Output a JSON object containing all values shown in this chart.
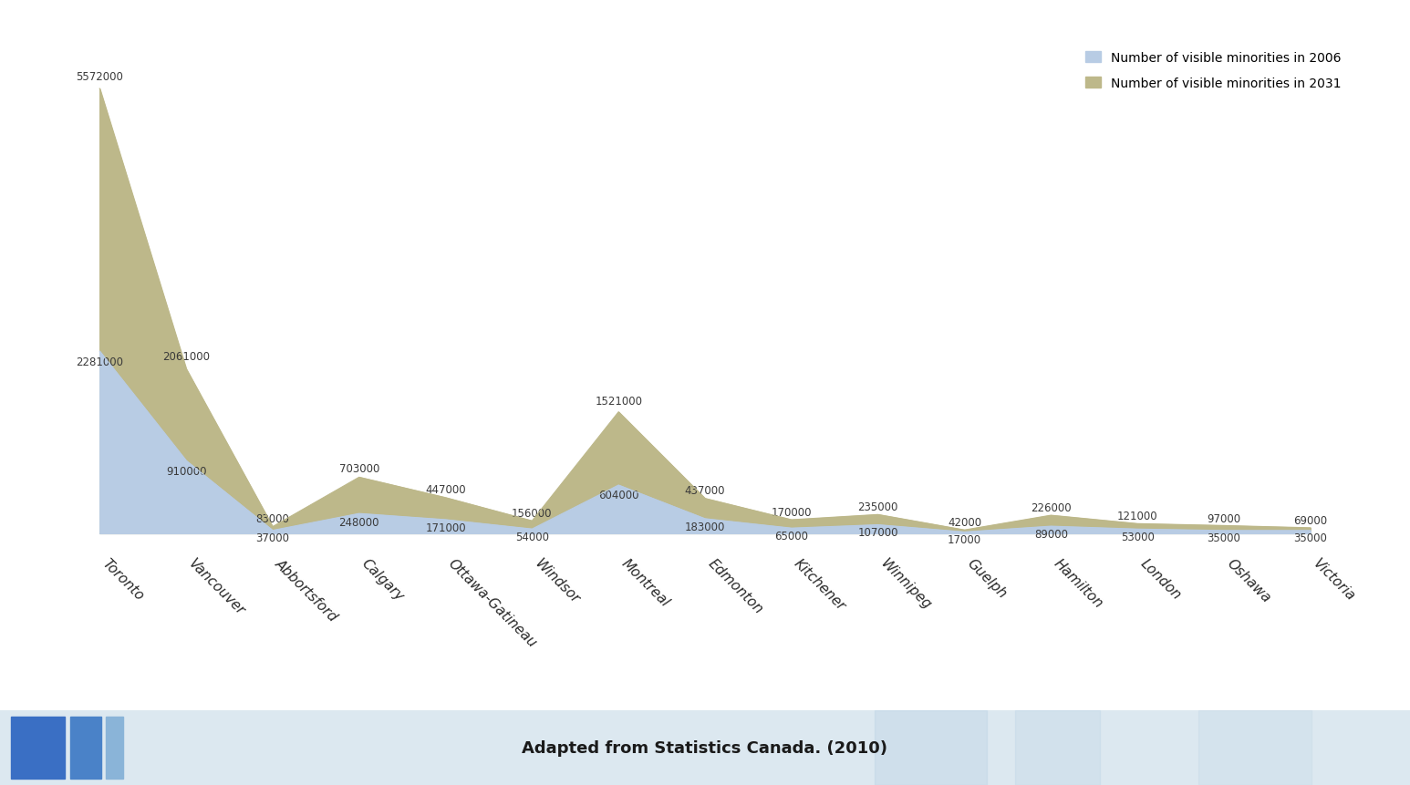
{
  "cities": [
    "Toronto",
    "Vancouver",
    "Abbortsford",
    "Calgary",
    "Ottawa-Gatineau",
    "Windsor",
    "Montreal",
    "Edmonton",
    "Kitchener",
    "Winnipeg",
    "Guelph",
    "Hamilton",
    "London",
    "Oshawa",
    "Victoria"
  ],
  "values_2006": [
    2281000,
    910000,
    37000,
    248000,
    171000,
    54000,
    604000,
    183000,
    65000,
    107000,
    17000,
    89000,
    53000,
    35000,
    35000
  ],
  "values_2031": [
    5572000,
    2061000,
    83000,
    703000,
    447000,
    156000,
    1521000,
    437000,
    170000,
    235000,
    42000,
    226000,
    121000,
    97000,
    69000
  ],
  "color_2006": "#b8cce4",
  "color_2031": "#bdb88a",
  "legend_2006": "Number of visible minorities in 2006",
  "legend_2031": "Number of visible minorities in 2031",
  "footer_text": "Adapted from Statistics Canada. (2010)",
  "footer_bg_light": "#d6e4f0",
  "footer_bg_main": "#dce8f0",
  "background_color": "#ffffff",
  "label_fontsize": 8.5,
  "legend_fontsize": 10,
  "footer_fontsize": 13,
  "xtick_fontsize": 11,
  "label_color": "#3a3a3a"
}
